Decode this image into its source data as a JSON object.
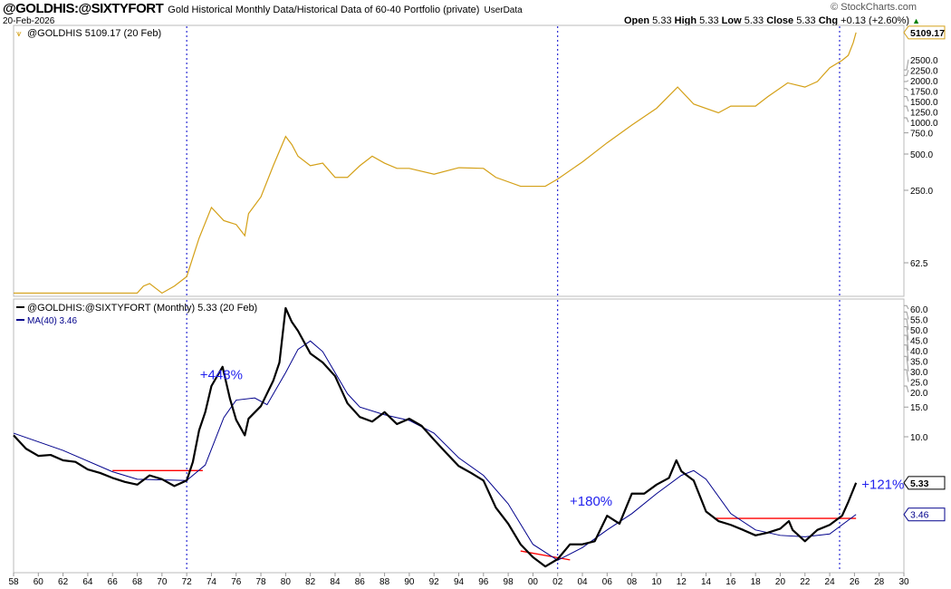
{
  "header": {
    "symbol": "@GOLDHIS:@SIXTYFORT",
    "description": "Gold Historical Monthly Data/Historical Data of 60-40 Portfolio (private)",
    "source_tag": "UserData",
    "date": "20-Feb-2026",
    "watermark": "© StockCharts.com",
    "ohlc": {
      "open_label": "Open",
      "open": "5.33",
      "high_label": "High",
      "high": "5.33",
      "low_label": "Low",
      "low": "5.33",
      "close_label": "Close",
      "close": "5.33",
      "chg_label": "Chg",
      "chg": "+0.13 (+2.60%)"
    },
    "up_color": "#008000"
  },
  "chart_data": [
    {
      "type": "line",
      "title": "@GOLDHIS 5109.17 (20 Feb)",
      "scale": "log",
      "color": "#d4a017",
      "last_value_label": "5109.17",
      "ylim": [
        28,
        6200
      ],
      "yticks": [
        "62.5",
        "250.0",
        "500.0",
        "750.0",
        "1000.0",
        "1250.0",
        "1500.0",
        "1750.0",
        "2000.0",
        "2250.0",
        "2500.0"
      ],
      "ytick_values": [
        62.5,
        250,
        500,
        750,
        1000,
        1250,
        1500,
        1750,
        2000,
        2250,
        2500
      ],
      "x": [
        1958,
        1968,
        1968.5,
        1969,
        1970,
        1971,
        1972,
        1973,
        1974,
        1975,
        1976,
        1976.7,
        1977,
        1978,
        1979,
        1980,
        1980.5,
        1981,
        1982,
        1983,
        1984,
        1985,
        1986,
        1987,
        1988,
        1989,
        1990,
        1992,
        1994,
        1996,
        1997,
        1999,
        2001,
        2002,
        2004,
        2006,
        2008,
        2010,
        2011.7,
        2013,
        2015,
        2016,
        2018,
        2019,
        2020.6,
        2022,
        2023,
        2024,
        2025,
        2025.5,
        2025.9,
        2026.13
      ],
      "y": [
        35,
        35,
        40,
        42,
        35,
        40,
        48,
        100,
        180,
        140,
        130,
        105,
        160,
        220,
        400,
        700,
        600,
        480,
        400,
        420,
        320,
        320,
        400,
        480,
        420,
        380,
        380,
        340,
        385,
        380,
        320,
        270,
        270,
        310,
        430,
        620,
        870,
        1200,
        1800,
        1300,
        1100,
        1250,
        1250,
        1500,
        1950,
        1800,
        2000,
        2600,
        3000,
        3300,
        4200,
        5109
      ]
    },
    {
      "type": "line",
      "title": "@GOLDHIS:@SIXTYFORT (Monthly) 5.33 (20 Feb)",
      "scale": "log",
      "last_value_label": "5.33",
      "ylim": [
        1.5,
        65
      ],
      "yticks": [
        "10.0",
        "15.0",
        "20.0",
        "25.0",
        "30.0",
        "35.0",
        "40.0",
        "45.0",
        "50.0",
        "55.0",
        "60.0"
      ],
      "ytick_values": [
        10,
        15,
        20,
        25,
        30,
        35,
        40,
        45,
        50,
        55,
        60
      ],
      "xticks": [
        "58",
        "60",
        "62",
        "64",
        "66",
        "68",
        "70",
        "72",
        "74",
        "76",
        "78",
        "80",
        "82",
        "84",
        "86",
        "88",
        "90",
        "92",
        "94",
        "96",
        "98",
        "00",
        "02",
        "04",
        "06",
        "08",
        "10",
        "12",
        "14",
        "16",
        "18",
        "20",
        "22",
        "24",
        "26",
        "28",
        "30"
      ],
      "xlim": [
        1958,
        2030
      ],
      "series": [
        {
          "name": "@GOLDHIS:@SIXTYFORT",
          "color": "#000000",
          "x": [
            1958,
            1959,
            1960,
            1961,
            1962,
            1963,
            1964,
            1965,
            1966,
            1967,
            1968,
            1969,
            1970,
            1971,
            1972,
            1972.5,
            1973,
            1973.5,
            1974,
            1974.9,
            1975.5,
            1976,
            1976.7,
            1977,
            1978,
            1979,
            1979.5,
            1980,
            1980.5,
            1981,
            1982,
            1983,
            1984,
            1985,
            1986,
            1987,
            1988,
            1989,
            1990,
            1991,
            1992,
            1993,
            1994,
            1995,
            1996,
            1997,
            1998,
            1999,
            2000,
            2001,
            2002,
            2003,
            2004,
            2005,
            2006,
            2007,
            2008,
            2009,
            2010,
            2011,
            2011.6,
            2012,
            2013,
            2014,
            2015,
            2016,
            2017,
            2018,
            2019,
            2020,
            2020.7,
            2021,
            2022,
            2023,
            2024,
            2025,
            2025.5,
            2026.13
          ],
          "y": [
            10.2,
            8.5,
            7.7,
            7.8,
            7.25,
            7.1,
            6.4,
            6.1,
            5.7,
            5.4,
            5.2,
            5.9,
            5.6,
            5.1,
            5.5,
            7.1,
            10.9,
            14,
            20,
            26,
            16.8,
            12.6,
            10.2,
            12.8,
            15.2,
            21.5,
            27.6,
            58,
            48,
            42.5,
            31.2,
            27.6,
            22.9,
            15.8,
            13.1,
            12.3,
            14,
            11.9,
            12.8,
            11.6,
            9.6,
            8.0,
            6.7,
            6.1,
            5.5,
            3.8,
            3.05,
            2.3,
            1.93,
            1.7,
            1.88,
            2.3,
            2.3,
            2.4,
            3.4,
            3.05,
            4.6,
            4.6,
            5.2,
            5.7,
            7.25,
            6.25,
            5.5,
            3.6,
            3.16,
            3.0,
            2.8,
            2.6,
            2.7,
            2.85,
            3.16,
            2.8,
            2.4,
            2.8,
            3.0,
            3.4,
            4.1,
            5.33
          ]
        },
        {
          "name": "MA(40) 3.46",
          "color": "#00008b",
          "last_value_label": "3.46",
          "x": [
            1958,
            1962,
            1966,
            1968,
            1972,
            1973.5,
            1975,
            1976,
            1977.5,
            1978.5,
            1980,
            1981,
            1982,
            1983,
            1984,
            1985,
            1986,
            1988,
            1990,
            1992,
            1994,
            1996,
            1998,
            2000,
            2002,
            2004,
            2006,
            2008,
            2010,
            2012,
            2013,
            2014,
            2016,
            2018,
            2020,
            2022,
            2024,
            2026.13
          ],
          "y": [
            10.5,
            8.3,
            6.2,
            5.6,
            5.5,
            6.8,
            13,
            16.5,
            17,
            15.5,
            24,
            33,
            37,
            32,
            24,
            18,
            15,
            13.5,
            12.5,
            10.5,
            7.5,
            5.9,
            4.0,
            2.3,
            1.85,
            2.2,
            2.8,
            3.5,
            4.6,
            5.9,
            6.3,
            5.6,
            3.5,
            2.8,
            2.6,
            2.55,
            2.65,
            3.46
          ]
        }
      ],
      "trendlines": [
        {
          "x": [
            1966,
            1973.3
          ],
          "y": [
            6.3,
            6.3
          ],
          "color": "#ff0000"
        },
        {
          "x": [
            1999,
            2003
          ],
          "y": [
            2.1,
            1.86
          ],
          "color": "#ff0000"
        },
        {
          "x": [
            2014.8,
            2026.13
          ],
          "y": [
            3.28,
            3.28
          ],
          "color": "#ff0000"
        }
      ],
      "annotations": [
        {
          "text": "+448%",
          "x": 1974.8,
          "y": 22
        },
        {
          "text": "+180%",
          "x": 2004.7,
          "y": 3.9
        },
        {
          "text": "+121%",
          "x": 2028.3,
          "y": 4.9
        }
      ],
      "vertical_markers": [
        1972,
        2002,
        2024.8
      ]
    }
  ]
}
